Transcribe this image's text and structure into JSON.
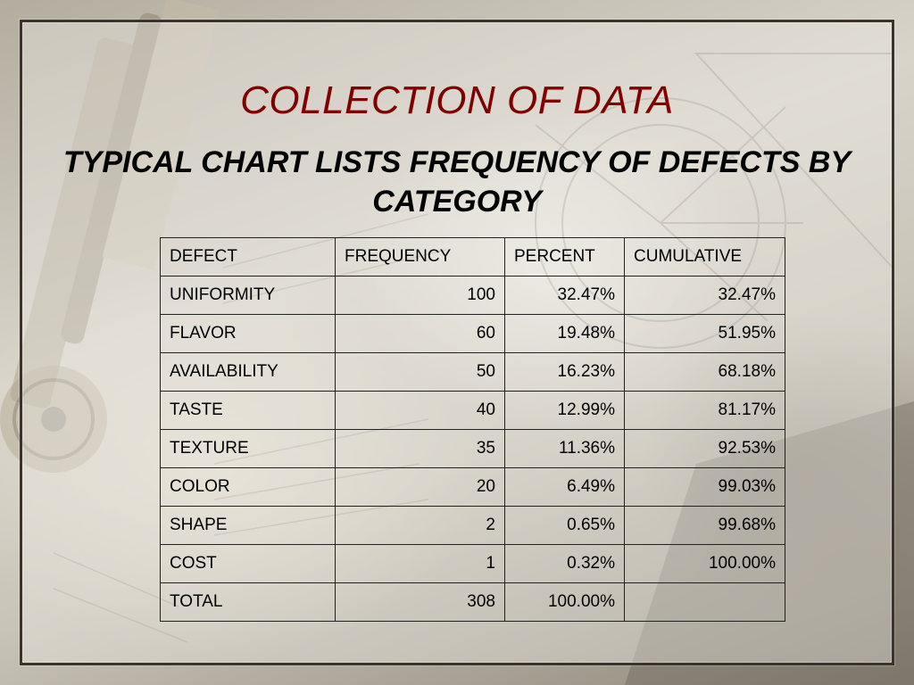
{
  "slide": {
    "title": "COLLECTION OF DATA",
    "subtitle": "TYPICAL CHART LISTS FREQUENCY OF DEFECTS BY CATEGORY"
  },
  "table": {
    "headers": [
      "DEFECT",
      "FREQUENCY",
      "PERCENT",
      "CUMULATIVE"
    ],
    "rows": [
      [
        "UNIFORMITY",
        "100",
        "32.47%",
        "32.47%"
      ],
      [
        "FLAVOR",
        "60",
        "19.48%",
        "51.95%"
      ],
      [
        "AVAILABILITY",
        "50",
        "16.23%",
        "68.18%"
      ],
      [
        "TASTE",
        "40",
        "12.99%",
        "81.17%"
      ],
      [
        "TEXTURE",
        "35",
        "11.36%",
        "92.53%"
      ],
      [
        "COLOR",
        "20",
        "6.49%",
        "99.03%"
      ],
      [
        "SHAPE",
        "2",
        "0.65%",
        "99.68%"
      ],
      [
        "COST",
        "1",
        "0.32%",
        "100.00%"
      ],
      [
        "TOTAL",
        "308",
        "100.00%",
        ""
      ]
    ]
  },
  "colors": {
    "title": "#800000",
    "border": "#222222"
  }
}
